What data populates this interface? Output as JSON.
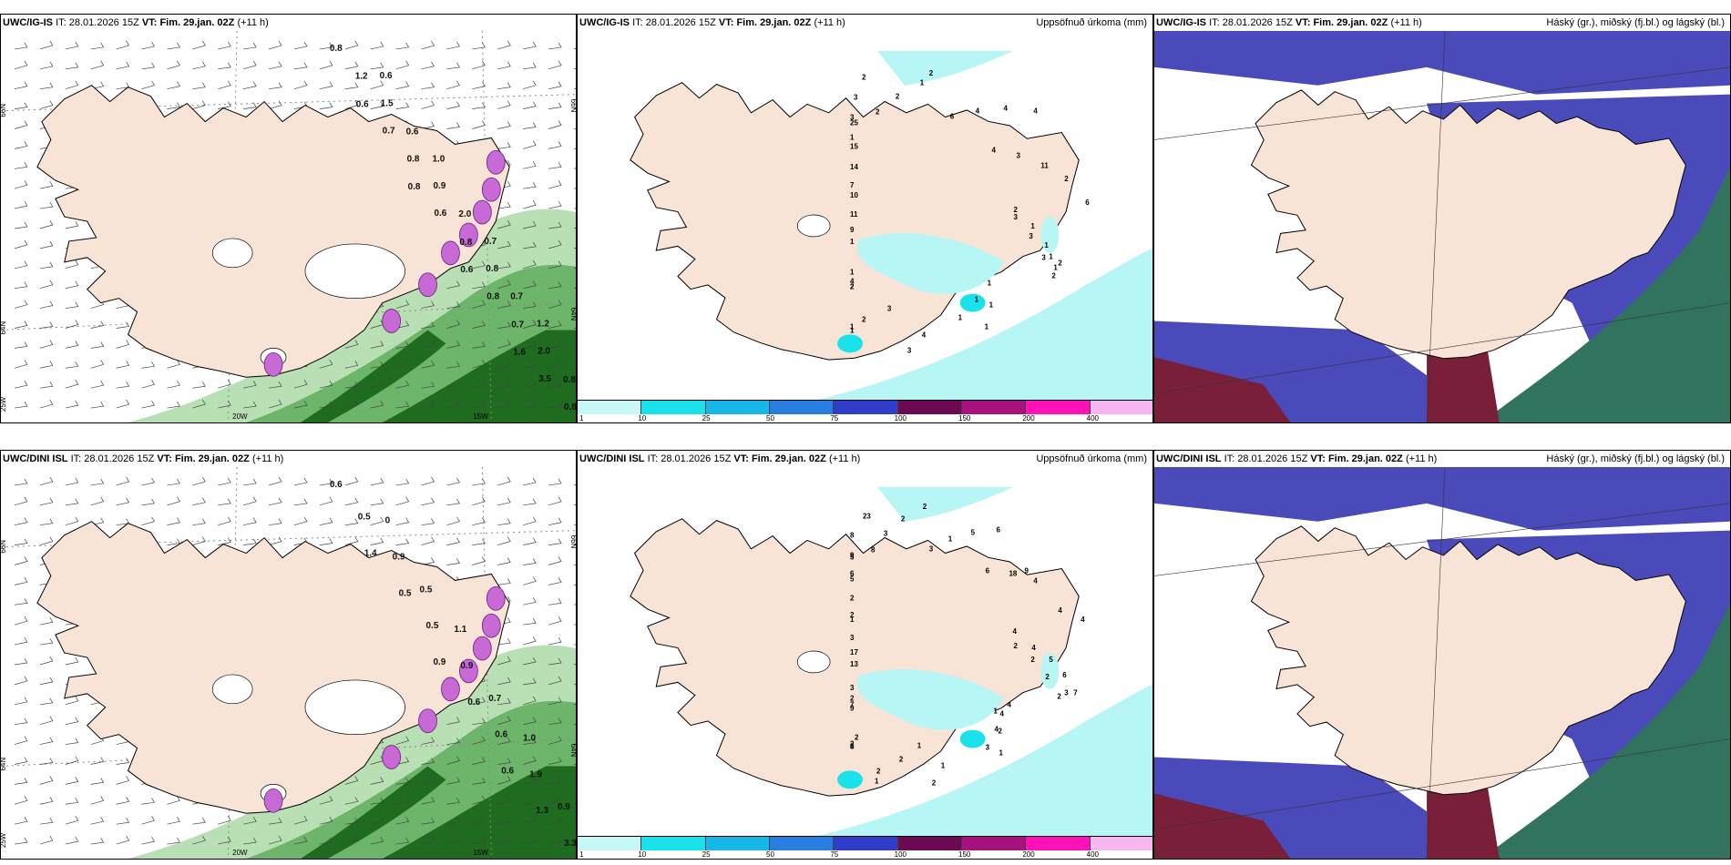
{
  "colors": {
    "land": "#f7e4d6",
    "coast": "#000000",
    "sea": "#ffffff",
    "precip_light": "#b8f5f5",
    "precip_cyan": "#19e2ea",
    "wind_barb": "#444444",
    "green_light": "#b8e0b4",
    "green_mid": "#6db56a",
    "green_dark": "#1f6b1f",
    "purple": "#c86ad6",
    "cloud_high": "#4a4abb",
    "cloud_mid": "#32735f",
    "cloud_low": "#7a1f3a"
  },
  "colorbar": {
    "labels": [
      "1",
      "10",
      "25",
      "50",
      "75",
      "100",
      "150",
      "200",
      "400"
    ],
    "colors": [
      "#c8f7f7",
      "#19e2ea",
      "#17b7e8",
      "#2a7de1",
      "#2f3dc8",
      "#6b0a52",
      "#a8127f",
      "#ff13b8",
      "#f8b6f0"
    ]
  },
  "rows": [
    {
      "wind_panel": {
        "model": "UWC/IG-IS",
        "it_label": "IT:",
        "it_value": "28.01.2026 15Z",
        "vt_label": "VT:",
        "vt_value": "Fim. 29.jan. 02Z",
        "lead": "(+11 h)",
        "lat_labels": [
          "66N",
          "64N",
          "25W"
        ],
        "lon_labels": [
          "20W",
          "15W"
        ],
        "right_lat_labels": [
          "66N",
          "64N"
        ],
        "values": [
          "0.8",
          "1.2",
          "0.6",
          "0.6",
          "1.5",
          "0.6",
          "0.7",
          "0.8",
          "1.0",
          "0.8",
          "0.9",
          "2.0",
          "0.6",
          "0.8",
          "0.7",
          "0.6",
          "0.8",
          "0.7",
          "0.8",
          "0.7",
          "1.2",
          "1.6",
          "2.0",
          "0.8",
          "3.5",
          "0.8"
        ]
      },
      "precip_panel": {
        "model": "UWC/IG-IS",
        "it_label": "IT:",
        "it_value": "28.01.2026 15Z",
        "vt_label": "VT:",
        "vt_value": "Fim. 29.jan. 02Z",
        "lead": "(+11 h)",
        "legend_title": "Uppsöfnuð úrkoma (mm)",
        "values": [
          "2",
          "1",
          "1",
          "1",
          "2",
          "1",
          "1",
          "1",
          "1",
          "1",
          "4",
          "3",
          "3",
          "2",
          "1",
          "1",
          "2",
          "2",
          "4",
          "1",
          "1",
          "9",
          "11",
          "10",
          "7",
          "14",
          "15",
          "25",
          "1",
          "3",
          "3",
          "2",
          "2",
          "2",
          "1",
          "2",
          "6",
          "4",
          "4",
          "4",
          "4",
          "3",
          "11",
          "2",
          "6",
          "3",
          "3",
          "3",
          "1",
          "2"
        ]
      },
      "cloud_panel": {
        "model": "UWC/IG-IS",
        "it_label": "IT:",
        "it_value": "28.01.2026 15Z",
        "vt_label": "VT:",
        "vt_value": "Fim. 29.jan. 02Z",
        "lead": "(+11 h)",
        "legend_title": "Háský (gr.), miðský (fj.bl.) og lágský (bl.)"
      }
    },
    {
      "wind_panel": {
        "model": "UWC/DINI ISL",
        "it_label": "IT:",
        "it_value": "28.01.2026 15Z",
        "vt_label": "VT:",
        "vt_value": "Fim. 29.jan. 02Z",
        "lead": "(+11 h)",
        "lat_labels": [
          "66N",
          "64N",
          "25W"
        ],
        "lon_labels": [
          "20W",
          "15W"
        ],
        "right_lat_labels": [
          "66N",
          "64N"
        ],
        "values": [
          "0.6",
          "0.5",
          "0",
          "1.4",
          "0.9",
          "0.5",
          "0.5",
          "0.5",
          "1.1",
          "0.9",
          "0.9",
          "0.7",
          "0.6",
          "0.6",
          "1.0",
          "0.6",
          "1.9",
          "0.9",
          "1.3",
          "3.3"
        ]
      },
      "precip_panel": {
        "model": "UWC/DINI ISL",
        "it_label": "IT:",
        "it_value": "28.01.2026 15Z",
        "vt_label": "VT:",
        "vt_value": "Fim. 29.jan. 02Z",
        "lead": "(+11 h)",
        "legend_title": "Uppsöfnuð úrkoma (mm)",
        "values": [
          "2",
          "2",
          "2",
          "2",
          "3",
          "1",
          "2",
          "1",
          "4",
          "3",
          "1",
          "2",
          "1",
          "2",
          "2",
          "1",
          "2",
          "2",
          "4",
          "5",
          "9",
          "7",
          "2",
          "3",
          "13",
          "17",
          "3",
          "1",
          "2",
          "2",
          "5",
          "5",
          "6",
          "9",
          "8",
          "23",
          "8",
          "3",
          "2",
          "2",
          "3",
          "1",
          "5",
          "6",
          "9",
          "6",
          "18",
          "4",
          "4",
          "4",
          "4",
          "4",
          "5",
          "6",
          "7",
          "4",
          "4"
        ]
      },
      "cloud_panel": {
        "model": "UWC/DINI ISL",
        "it_label": "IT:",
        "it_value": "28.01.2026 15Z",
        "vt_label": "VT:",
        "vt_value": "Fim. 29.jan. 02Z",
        "lead": "(+11 h)",
        "legend_title": "Háský (gr.), miðský (fj.bl.) og lágský (bl.)"
      }
    }
  ]
}
